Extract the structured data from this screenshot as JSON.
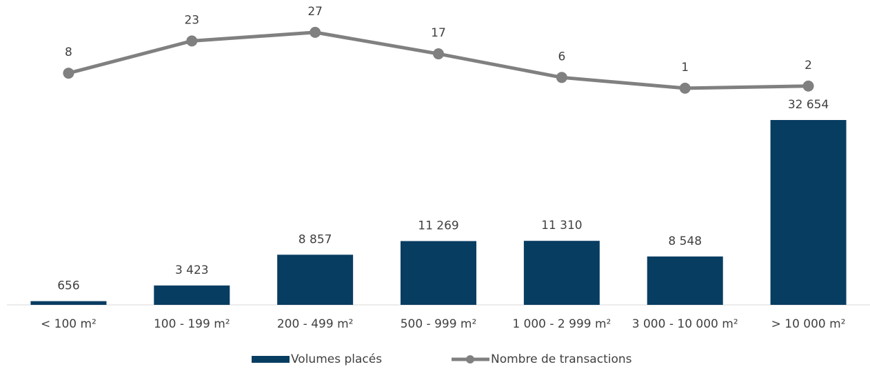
{
  "chart_data": {
    "type": "bar-line",
    "categories": [
      "< 100 m²",
      "100 - 199 m²",
      "200 - 499 m²",
      "500 - 999 m²",
      "1 000 - 2 999 m²",
      "3 000 - 10 000 m²",
      "> 10 000 m²"
    ],
    "series": [
      {
        "name": "Volumes placés",
        "type": "bar",
        "color": "#083d62",
        "values": [
          656,
          3423,
          8857,
          11269,
          11310,
          8548,
          32654
        ],
        "value_labels": [
          "656",
          "3 423",
          "8 857",
          "11 269",
          "11 310",
          "8 548",
          "32 654"
        ]
      },
      {
        "name": "Nombre de transactions",
        "type": "line",
        "axis": "y2",
        "color": "#808080",
        "values": [
          8,
          23,
          27,
          17,
          6,
          1,
          2
        ]
      }
    ],
    "ylim": [
      0,
      40000
    ],
    "y2lim": [
      0,
      40
    ],
    "legend": "bottom"
  }
}
